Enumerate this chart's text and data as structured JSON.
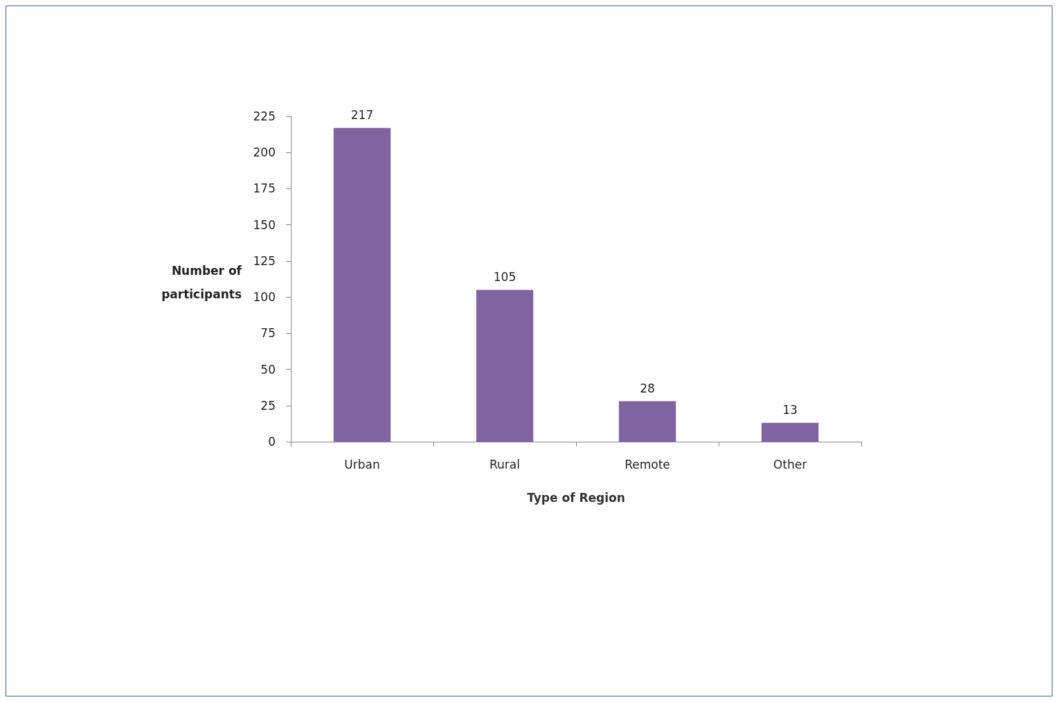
{
  "chart_data": {
    "type": "bar",
    "xlabel": "Type of Region",
    "ylabel": "Number of participants",
    "categories": [
      "Urban",
      "Rural",
      "Remote",
      "Other"
    ],
    "values": [
      217,
      105,
      28,
      13
    ],
    "color": "#8064a2",
    "ylim": [
      0,
      225
    ],
    "yticks": [
      0,
      25,
      50,
      75,
      100,
      125,
      150,
      175,
      200,
      225
    ],
    "data_labels": true,
    "grid": false
  }
}
